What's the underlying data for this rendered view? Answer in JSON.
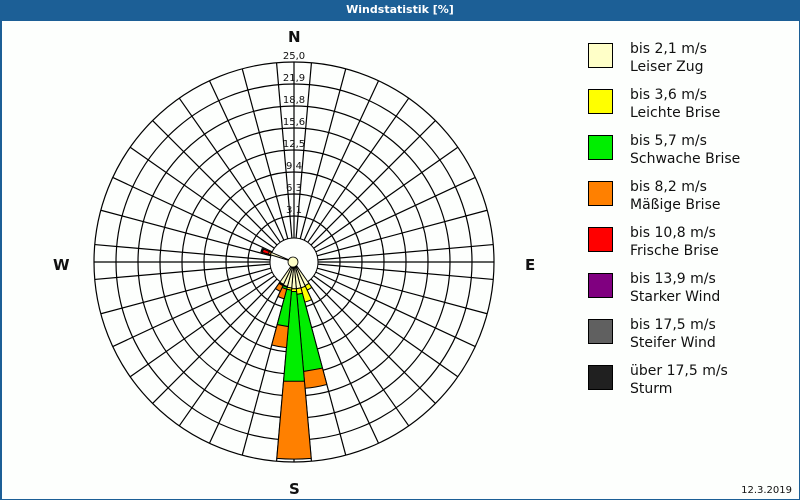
{
  "window": {
    "title": "Windstatistik [%]"
  },
  "compass": {
    "north": "N",
    "east": "E",
    "south": "S",
    "west": "W"
  },
  "footer": {
    "date": "12.3.2019"
  },
  "legend": {
    "items": [
      {
        "line1": "bis 2,1 m/s",
        "line2": "Leiser Zug",
        "color": "#ffffc8"
      },
      {
        "line1": "bis 3,6 m/s",
        "line2": "Leichte Brise",
        "color": "#ffff00"
      },
      {
        "line1": "bis 5,7 m/s",
        "line2": "Schwache Brise",
        "color": "#00ee00"
      },
      {
        "line1": "bis 8,2 m/s",
        "line2": "Mäßige Brise",
        "color": "#ff8000"
      },
      {
        "line1": "bis 10,8 m/s",
        "line2": "Frische Brise",
        "color": "#ff0000"
      },
      {
        "line1": "bis 13,9 m/s",
        "line2": "Starker Wind",
        "color": "#800080"
      },
      {
        "line1": "bis 17,5 m/s",
        "line2": "Steifer Wind",
        "color": "#606060"
      },
      {
        "line1": "über 17,5 m/s",
        "line2": "Sturm",
        "color": "#202020"
      }
    ]
  },
  "chart_data": {
    "type": "wind-rose",
    "title": "Windstatistik [%]",
    "ring_labels": [
      "3,1",
      "6,3",
      "9,4",
      "12,5",
      "15,6",
      "18,8",
      "21,9",
      "25,0"
    ],
    "rmax": 25.0,
    "sector_width_deg": 10,
    "sectors_count": 36,
    "grid": true,
    "categories_speed": [
      "bis 2,1 m/s",
      "bis 3,6 m/s",
      "bis 5,7 m/s",
      "bis 8,2 m/s",
      "bis 10,8 m/s",
      "bis 13,9 m/s",
      "bis 17,5 m/s",
      "über 17,5 m/s"
    ],
    "series": [
      {
        "direction_deg": 150,
        "cumulative": [
          0.3,
          1.0,
          1.0,
          1.0
        ]
      },
      {
        "direction_deg": 160,
        "cumulative": [
          0.4,
          2.5,
          2.5,
          2.5
        ]
      },
      {
        "direction_deg": 170,
        "cumulative": [
          0.4,
          1.2,
          12.2,
          14.6
        ]
      },
      {
        "direction_deg": 180,
        "cumulative": [
          0.4,
          0.8,
          13.6,
          24.6
        ]
      },
      {
        "direction_deg": 190,
        "cumulative": [
          0.3,
          0.6,
          5.8,
          8.8
        ]
      },
      {
        "direction_deg": 200,
        "cumulative": [
          0.2,
          0.3,
          0.6,
          2.0
        ]
      },
      {
        "direction_deg": 210,
        "cumulative": [
          0.1,
          0.2,
          0.3,
          1.2
        ]
      },
      {
        "direction_deg": 290,
        "cumulative": [
          0.1,
          0.1,
          0.1,
          0.4,
          1.3,
          1.3,
          1.3,
          1.5
        ]
      }
    ],
    "legend_position": "right"
  }
}
